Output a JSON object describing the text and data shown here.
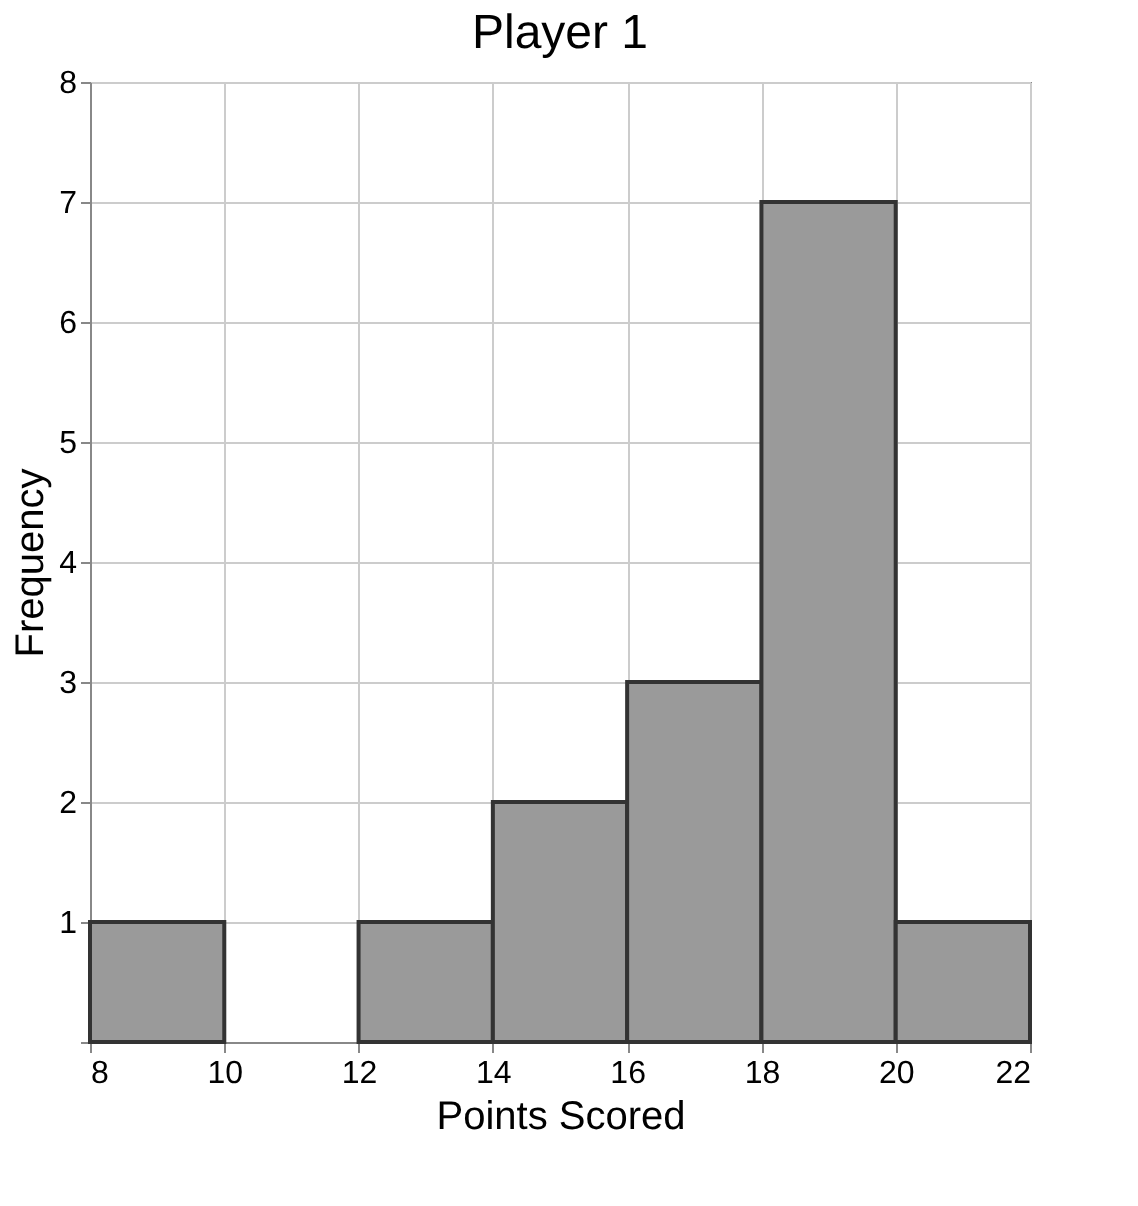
{
  "chart_data": {
    "type": "histogram",
    "title": "Player 1",
    "xlabel": "Points Scored",
    "ylabel": "Frequency",
    "bins": [
      8,
      10,
      12,
      14,
      16,
      18,
      20,
      22
    ],
    "values": [
      1,
      0,
      1,
      2,
      3,
      7,
      1
    ],
    "color": "#9a9a9a",
    "xlim": [
      8,
      22
    ],
    "xticks": [
      8,
      10,
      12,
      14,
      16,
      18,
      20,
      22
    ],
    "ylim": [
      0,
      8
    ],
    "yticks": [
      {
        "value": 0,
        "label": null
      },
      1,
      2,
      3,
      4,
      5,
      6,
      7,
      8
    ],
    "grid": true
  }
}
